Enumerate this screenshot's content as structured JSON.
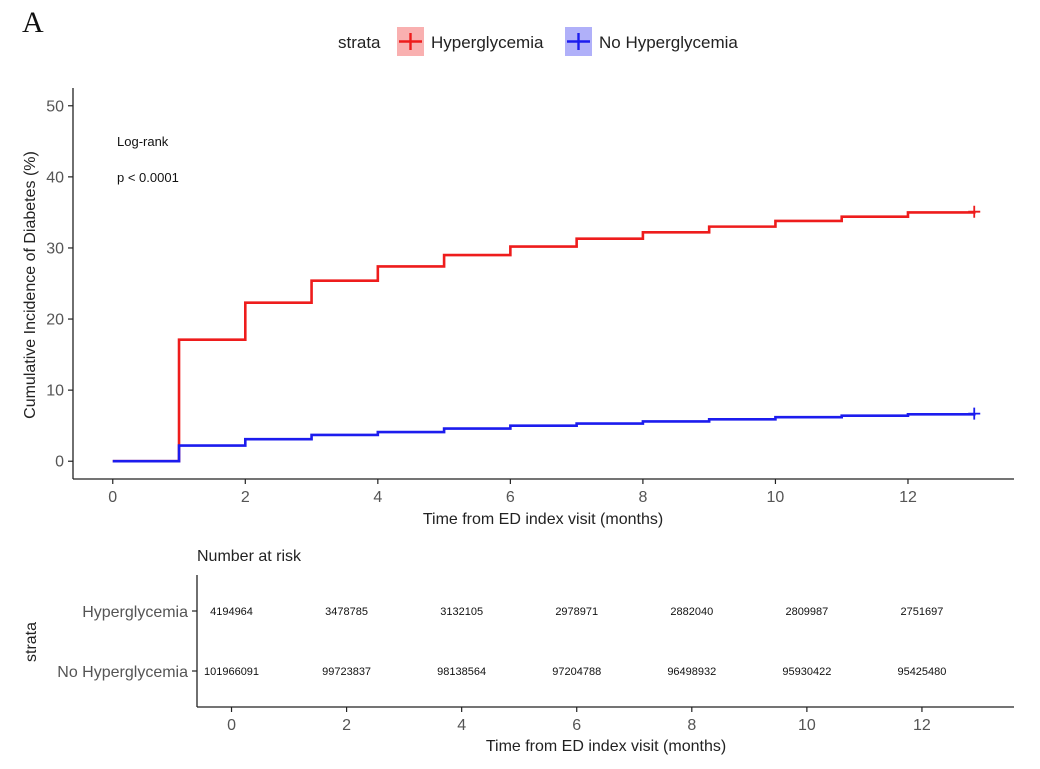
{
  "panel_label": "A",
  "chart_data": [
    {
      "type": "line",
      "subtype": "kaplan-meier-cumulative-incidence",
      "legend": {
        "title": "strata",
        "placement": "top",
        "entries": [
          {
            "label": "Hyperglycemia",
            "color": "#ee1c1c"
          },
          {
            "label": "No Hyperglycemia",
            "color": "#1c1cee"
          }
        ]
      },
      "xlabel": "Time from ED index visit (months)",
      "ylabel": "Cumulative Incidence of Diabetes (%)",
      "xlim": [
        -0.6,
        13.6
      ],
      "ylim": [
        -2.5,
        52.5
      ],
      "xticks": [
        0,
        2,
        4,
        6,
        8,
        10,
        12
      ],
      "yticks": [
        0,
        10,
        20,
        30,
        40,
        50
      ],
      "grid": false,
      "annotations": [
        "Log-rank",
        "p < 0.0001"
      ],
      "series": [
        {
          "name": "Hyperglycemia",
          "color": "#ee1c1c",
          "x": [
            0,
            1,
            2,
            3,
            4,
            5,
            6,
            7,
            8,
            9,
            10,
            11,
            12,
            13
          ],
          "y": [
            0,
            17.1,
            22.3,
            25.4,
            27.4,
            29.0,
            30.2,
            31.3,
            32.2,
            33.0,
            33.8,
            34.4,
            35.0,
            35.1
          ]
        },
        {
          "name": "No Hyperglycemia",
          "color": "#1c1cee",
          "x": [
            0,
            1,
            2,
            3,
            4,
            5,
            6,
            7,
            8,
            9,
            10,
            11,
            12,
            13
          ],
          "y": [
            0,
            2.2,
            3.1,
            3.7,
            4.1,
            4.6,
            5.0,
            5.3,
            5.6,
            5.9,
            6.2,
            6.4,
            6.6,
            6.7
          ]
        }
      ]
    },
    {
      "type": "table",
      "title": "Number at risk",
      "xlabel": "Time from ED index visit (months)",
      "ylabel": "strata",
      "xticks": [
        0,
        2,
        4,
        6,
        8,
        10,
        12
      ],
      "xlim": [
        -0.6,
        13.6
      ],
      "rows": [
        {
          "label": "Hyperglycemia",
          "x": [
            0,
            2,
            4,
            6,
            8,
            10,
            12
          ],
          "values": [
            "4194964",
            "3478785",
            "3132105",
            "2978971",
            "2882040",
            "2809987",
            "2751697"
          ]
        },
        {
          "label": "No Hyperglycemia",
          "x": [
            0,
            2,
            4,
            6,
            8,
            10,
            12
          ],
          "values": [
            "101966091",
            "99723837",
            "98138564",
            "97204788",
            "96498932",
            "95930422",
            "95425480"
          ]
        }
      ]
    }
  ]
}
